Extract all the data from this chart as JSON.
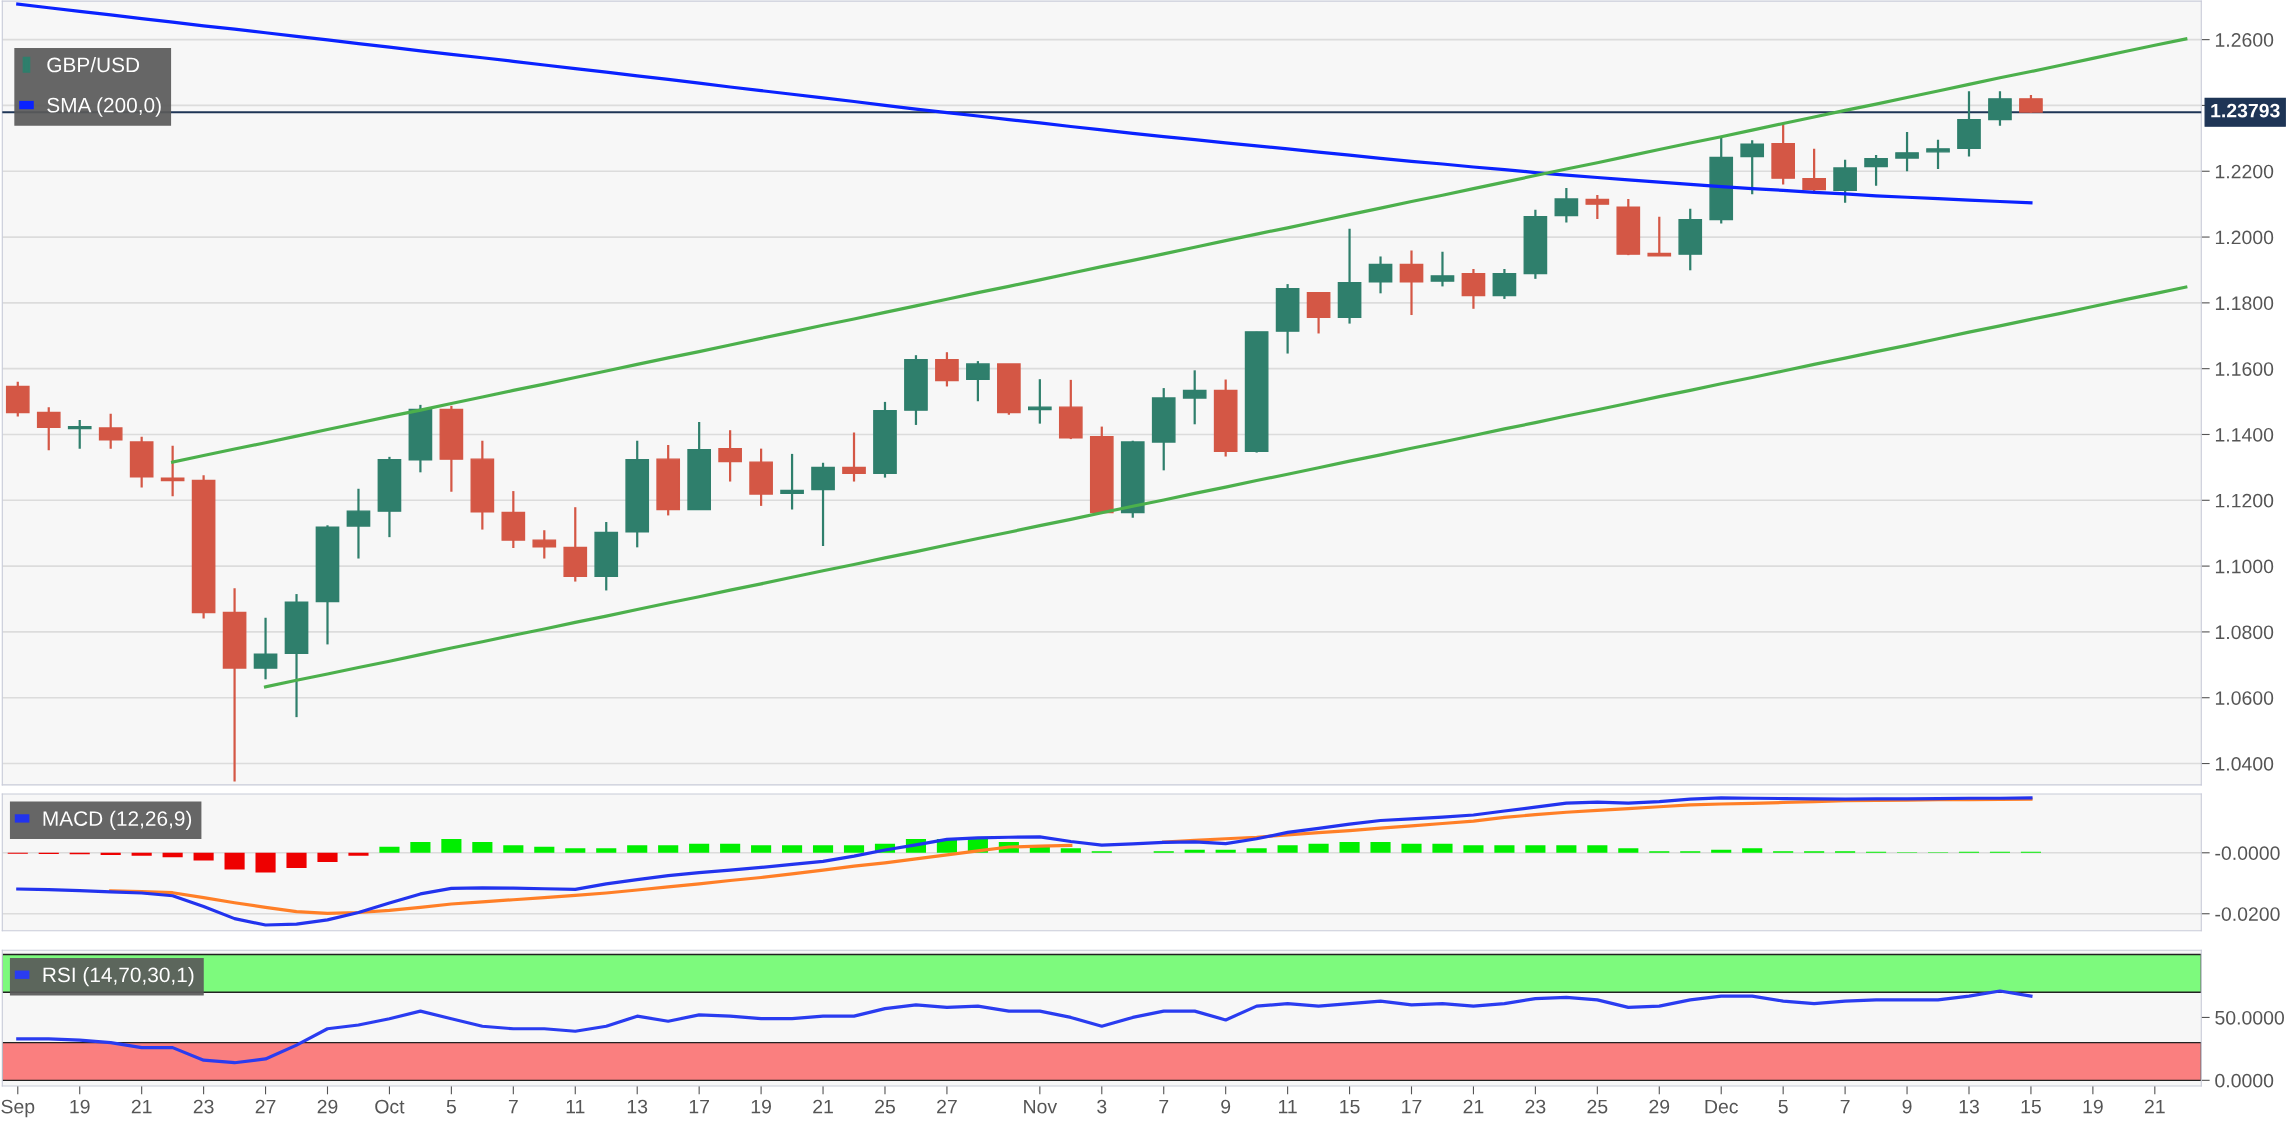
{
  "chart_data": [
    {
      "type": "candlestick",
      "ylim": [
        1.0335,
        1.2717
      ],
      "tick_labels": "y",
      "grid": "y",
      "legend": "top left",
      "categories": [
        null,
        null,
        null,
        null,
        null,
        null,
        null,
        null,
        null,
        null,
        null,
        null,
        null,
        null,
        null,
        null,
        null,
        null,
        null,
        null,
        null,
        null,
        null,
        null,
        null,
        null,
        null,
        null,
        null,
        null,
        null,
        null,
        null,
        null,
        null,
        null,
        null,
        null,
        null,
        null,
        null,
        null,
        null,
        null,
        null,
        null,
        null,
        null,
        null,
        null,
        null,
        null,
        null,
        null,
        null,
        null,
        null,
        null,
        null,
        null,
        null,
        null,
        null,
        null,
        null,
        null,
        null,
        null,
        null,
        null,
        null
      ],
      "yticks": [
        {
          "value": 1.04,
          "label": "1.0400"
        },
        {
          "value": 1.06,
          "label": "1.0600"
        },
        {
          "value": 1.08,
          "label": "1.0800"
        },
        {
          "value": 1.1,
          "label": "1.1000"
        },
        {
          "value": 1.12,
          "label": "1.1200"
        },
        {
          "value": 1.14,
          "label": "1.1400"
        },
        {
          "value": 1.16,
          "label": "1.1600"
        },
        {
          "value": 1.18,
          "label": "1.1800"
        },
        {
          "value": 1.2,
          "label": "1.2000"
        },
        {
          "value": 1.22,
          "label": "1.2200"
        },
        {
          "value": 1.24,
          "label": null
        },
        {
          "value": 1.26,
          "label": "1.2600"
        }
      ],
      "ref_lines": [
        {
          "axis": "y",
          "value": 1.23793,
          "label": "1.23793",
          "color": "#1e3556"
        }
      ],
      "series": [
        {
          "type": "line",
          "name": "SMA (200,0)",
          "color": "#0a22ff",
          "values": [
            1.2708,
            1.2697,
            1.2686,
            1.2675,
            1.2664,
            1.2653,
            1.2642,
            1.2632,
            1.2621,
            1.261,
            1.2599,
            1.2588,
            1.2577,
            1.2566,
            1.2555,
            1.2545,
            1.2534,
            1.2523,
            1.2512,
            1.2501,
            1.249,
            1.2479,
            1.2468,
            1.2456,
            1.2445,
            1.2434,
            1.2423,
            1.2412,
            1.24,
            1.2389,
            1.2378,
            1.2368,
            1.2357,
            1.2347,
            1.2336,
            1.2326,
            1.2315,
            1.2305,
            1.2296,
            1.2286,
            1.2277,
            1.2268,
            1.2258,
            1.2249,
            1.2239,
            1.223,
            1.2222,
            1.2213,
            1.2205,
            1.2196,
            1.2188,
            1.2181,
            1.2174,
            1.2167,
            1.216,
            1.2153,
            1.2147,
            1.2142,
            1.2136,
            1.2131,
            1.2125,
            1.2121,
            1.2117,
            1.2112,
            1.2108,
            1.2104,
            null,
            null,
            null,
            null,
            null
          ]
        },
        {
          "type": "line",
          "color": "#4cb04c",
          "values": [
            null,
            null,
            null,
            null,
            null,
            1.1316,
            1.1336,
            1.1356,
            1.1375,
            1.1395,
            1.1415,
            1.1435,
            1.1455,
            1.1474,
            1.1494,
            1.1514,
            1.1534,
            1.1553,
            1.1573,
            1.1593,
            1.1613,
            1.1633,
            1.1652,
            1.1672,
            1.1692,
            1.1712,
            1.1732,
            1.1751,
            1.1771,
            1.1791,
            1.1811,
            1.1831,
            1.185,
            1.187,
            1.189,
            1.191,
            1.1929,
            1.1949,
            1.1969,
            1.1989,
            1.2009,
            1.2028,
            1.2048,
            1.2068,
            1.2088,
            1.2108,
            1.2127,
            1.2147,
            1.2167,
            1.2187,
            1.2207,
            1.2226,
            1.2246,
            1.2266,
            1.2286,
            1.2305,
            1.2325,
            1.2345,
            1.2365,
            1.2385,
            1.2404,
            1.2424,
            1.2444,
            1.2464,
            1.2484,
            1.2503,
            1.2523,
            1.2543,
            1.2563,
            1.2583,
            1.2602
          ]
        },
        {
          "type": "line",
          "color": "#4cb04c",
          "values": [
            null,
            null,
            null,
            null,
            null,
            null,
            null,
            null,
            1.0633,
            1.0653,
            1.0672,
            1.0692,
            1.0711,
            1.0731,
            1.0751,
            1.077,
            1.079,
            1.0809,
            1.0829,
            1.0848,
            1.0868,
            1.0888,
            1.0907,
            1.0927,
            1.0946,
            1.0966,
            1.0986,
            1.1005,
            1.1025,
            1.1044,
            1.1064,
            1.1084,
            1.1103,
            1.1123,
            1.1142,
            1.1162,
            1.1182,
            1.1201,
            1.1221,
            1.124,
            1.126,
            1.1279,
            1.1299,
            1.1319,
            1.1338,
            1.1358,
            1.1377,
            1.1397,
            1.1417,
            1.1436,
            1.1456,
            1.1475,
            1.1495,
            1.1515,
            1.1534,
            1.1554,
            1.1573,
            1.1593,
            1.1613,
            1.1632,
            1.1652,
            1.1671,
            1.1691,
            1.1711,
            1.173,
            1.175,
            1.1769,
            1.1789,
            1.1809,
            1.1828,
            1.1848
          ]
        },
        {
          "name": "GBP/USD",
          "color": "#2f7f6c",
          "ohlc": [
            [
              1.1546,
              1.156,
              1.1455,
              1.1467
            ],
            [
              1.1467,
              1.1483,
              1.1352,
              1.1422
            ],
            [
              1.1418,
              1.1444,
              1.1357,
              1.1424
            ],
            [
              1.142,
              1.1463,
              1.1357,
              1.1384
            ],
            [
              1.1377,
              1.1393,
              1.1239,
              1.1271
            ],
            [
              1.1267,
              1.1366,
              1.1212,
              1.126
            ],
            [
              1.126,
              1.1276,
              1.0841,
              1.0859
            ],
            [
              1.0859,
              1.0933,
              1.0345,
              1.069
            ],
            [
              1.069,
              1.0843,
              1.0656,
              1.0732
            ],
            [
              1.0735,
              1.0915,
              1.0541,
              1.089
            ],
            [
              1.0892,
              1.1124,
              1.0762,
              1.1118
            ],
            [
              1.1122,
              1.1235,
              1.1023,
              1.1167
            ],
            [
              1.1167,
              1.1332,
              1.1088,
              1.1323
            ],
            [
              1.1323,
              1.149,
              1.1285,
              1.1476
            ],
            [
              1.1476,
              1.1487,
              1.1226,
              1.1325
            ],
            [
              1.1325,
              1.1381,
              1.1111,
              1.1165
            ],
            [
              1.1163,
              1.1228,
              1.1055,
              1.1079
            ],
            [
              1.1079,
              1.1109,
              1.1023,
              1.1059
            ],
            [
              1.1057,
              1.1179,
              1.0953,
              1.0969
            ],
            [
              1.0969,
              1.1134,
              1.0926,
              1.1102
            ],
            [
              1.1104,
              1.1381,
              1.1057,
              1.1323
            ],
            [
              1.1325,
              1.1368,
              1.1154,
              1.1172
            ],
            [
              1.1172,
              1.1438,
              1.1172,
              1.1354
            ],
            [
              1.1357,
              1.1413,
              1.1257,
              1.1318
            ],
            [
              1.1316,
              1.1357,
              1.1183,
              1.1219
            ],
            [
              1.1221,
              1.1341,
              1.1172,
              1.123
            ],
            [
              1.1233,
              1.1314,
              1.1061,
              1.13
            ],
            [
              1.13,
              1.1406,
              1.1257,
              1.1282
            ],
            [
              1.1282,
              1.1499,
              1.1269,
              1.1472
            ],
            [
              1.1474,
              1.1641,
              1.1429,
              1.1627
            ],
            [
              1.1627,
              1.165,
              1.1546,
              1.1564
            ],
            [
              1.1568,
              1.1623,
              1.1501,
              1.1614
            ],
            [
              1.1614,
              1.1614,
              1.146,
              1.1467
            ],
            [
              1.1476,
              1.1568,
              1.1433,
              1.1483
            ],
            [
              1.1483,
              1.1566,
              1.1386,
              1.139
            ],
            [
              1.1393,
              1.1424,
              1.1163,
              1.1163
            ],
            [
              1.1163,
              1.1381,
              1.1147,
              1.1377
            ],
            [
              1.1377,
              1.1541,
              1.1291,
              1.1511
            ],
            [
              1.1511,
              1.1595,
              1.1431,
              1.1534
            ],
            [
              1.1534,
              1.1567,
              1.1333,
              1.1349
            ],
            [
              1.1349,
              1.1712,
              1.1345,
              1.1712
            ],
            [
              1.1714,
              1.1857,
              1.1646,
              1.1843
            ],
            [
              1.1831,
              1.1831,
              1.1707,
              1.1756
            ],
            [
              1.1756,
              1.2025,
              1.1737,
              1.1861
            ],
            [
              1.1864,
              1.1941,
              1.1829,
              1.1917
            ],
            [
              1.1917,
              1.1959,
              1.1763,
              1.1864
            ],
            [
              1.1866,
              1.1955,
              1.185,
              1.1882
            ],
            [
              1.1889,
              1.1903,
              1.1782,
              1.1822
            ],
            [
              1.1822,
              1.1903,
              1.1812,
              1.1889
            ],
            [
              1.1889,
              1.2083,
              1.1873,
              1.2062
            ],
            [
              1.2065,
              1.2149,
              1.2044,
              1.2116
            ],
            [
              1.2114,
              1.2128,
              1.2055,
              1.21
            ],
            [
              1.2091,
              1.2116,
              1.1945,
              1.1948
            ],
            [
              1.195,
              1.2062,
              1.1943,
              1.1943
            ],
            [
              1.1948,
              1.2086,
              1.1899,
              1.2053
            ],
            [
              1.2053,
              1.2301,
              1.2041,
              1.2242
            ],
            [
              1.2245,
              1.2294,
              1.213,
              1.2282
            ],
            [
              1.2284,
              1.2343,
              1.216,
              1.2179
            ],
            [
              1.2177,
              1.2268,
              1.2139,
              1.2144
            ],
            [
              1.2142,
              1.2235,
              1.2104,
              1.221
            ],
            [
              1.2214,
              1.2249,
              1.2156,
              1.2238
            ],
            [
              1.224,
              1.2319,
              1.22,
              1.2256
            ],
            [
              1.2259,
              1.2296,
              1.2207,
              1.2268
            ],
            [
              1.227,
              1.2443,
              1.2245,
              1.2357
            ],
            [
              1.2357,
              1.2443,
              1.2338,
              1.242
            ],
            [
              1.242,
              1.2432,
              1.2378,
              1.238
            ],
            null,
            null,
            null,
            null,
            null
          ],
          "colors": [
            "#d45745",
            "#d45745",
            "#2f7f6c",
            "#d45745",
            "#d45745",
            "#d45745",
            "#d45745",
            "#d45745",
            "#2f7f6c",
            "#2f7f6c",
            "#2f7f6c",
            "#2f7f6c",
            "#2f7f6c",
            "#2f7f6c",
            "#d45745",
            "#d45745",
            "#d45745",
            "#d45745",
            "#d45745",
            "#2f7f6c",
            "#2f7f6c",
            "#d45745",
            "#2f7f6c",
            "#d45745",
            "#d45745",
            "#2f7f6c",
            "#2f7f6c",
            "#d45745",
            "#2f7f6c",
            "#2f7f6c",
            "#d45745",
            "#2f7f6c",
            "#d45745",
            "#2f7f6c",
            "#d45745",
            "#d45745",
            "#2f7f6c",
            "#2f7f6c",
            "#2f7f6c",
            "#d45745",
            "#2f7f6c",
            "#2f7f6c",
            "#d45745",
            "#2f7f6c",
            "#2f7f6c",
            "#d45745",
            "#2f7f6c",
            "#d45745",
            "#2f7f6c",
            "#2f7f6c",
            "#2f7f6c",
            "#d45745",
            "#d45745",
            "#d45745",
            "#2f7f6c",
            "#2f7f6c",
            "#2f7f6c",
            "#d45745",
            "#d45745",
            "#2f7f6c",
            "#2f7f6c",
            "#2f7f6c",
            "#2f7f6c",
            "#2f7f6c",
            "#2f7f6c",
            "#d45745",
            null,
            null,
            null,
            null,
            null
          ]
        }
      ]
    },
    {
      "type": "bar",
      "ylim": [
        -0.0256,
        0.0193
      ],
      "tick_labels": "y",
      "grid": "y",
      "legend": "top left",
      "categories": [
        null,
        null,
        null,
        null,
        null,
        null,
        null,
        null,
        null,
        null,
        null,
        null,
        null,
        null,
        null,
        null,
        null,
        null,
        null,
        null,
        null,
        null,
        null,
        null,
        null,
        null,
        null,
        null,
        null,
        null,
        null,
        null,
        null,
        null,
        null,
        null,
        null,
        null,
        null,
        null,
        null,
        null,
        null,
        null,
        null,
        null,
        null,
        null,
        null,
        null,
        null,
        null,
        null,
        null,
        null,
        null,
        null,
        null,
        null,
        null,
        null,
        null,
        null,
        null,
        null,
        null,
        null,
        null,
        null,
        null,
        null
      ],
      "yticks": [
        {
          "value": -0.02,
          "label": "-0.0200"
        },
        {
          "value": 0,
          "label": "-0.0000"
        }
      ],
      "series": [
        {
          "values": [
            -0.0003,
            -0.0004,
            -0.0005,
            -0.0007,
            -0.001,
            -0.0015,
            -0.0025,
            -0.0055,
            -0.0065,
            -0.005,
            -0.003,
            -0.001,
            0.002,
            0.0035,
            0.0045,
            0.0035,
            0.0025,
            0.002,
            0.0015,
            0.0015,
            0.0025,
            0.0025,
            0.003,
            0.003,
            0.0025,
            0.0025,
            0.0025,
            0.0025,
            0.003,
            0.0045,
            0.0045,
            0.0045,
            0.0035,
            0.0025,
            0.0015,
            0.0005,
            null,
            0.0005,
            0.001,
            0.001,
            0.0015,
            0.0025,
            0.003,
            0.0035,
            0.0035,
            0.003,
            0.003,
            0.0025,
            0.0025,
            0.0025,
            0.0025,
            0.0025,
            0.0015,
            0.0005,
            0.0005,
            0.001,
            0.0015,
            0.0005,
            0.0005,
            0.0005,
            0.0003,
            0.0002,
            0.0002,
            0.0003,
            0.0003,
            0.0003,
            null,
            null,
            null,
            null,
            null
          ],
          "colors": [
            "#ee0000",
            "#ee0000",
            "#ee0000",
            "#ee0000",
            "#ee0000",
            "#ee0000",
            "#ee0000",
            "#ee0000",
            "#ee0000",
            "#ee0000",
            "#ee0000",
            "#ee0000",
            "#00ee00",
            "#00ee00",
            "#00ee00",
            "#00ee00",
            "#00ee00",
            "#00ee00",
            "#00ee00",
            "#00ee00",
            "#00ee00",
            "#00ee00",
            "#00ee00",
            "#00ee00",
            "#00ee00",
            "#00ee00",
            "#00ee00",
            "#00ee00",
            "#00ee00",
            "#00ee00",
            "#00ee00",
            "#00ee00",
            "#00ee00",
            "#00ee00",
            "#00ee00",
            "#00ee00",
            "#00ee00",
            "#00ee00",
            "#00ee00",
            "#00ee00",
            "#00ee00",
            "#00ee00",
            "#00ee00",
            "#00ee00",
            "#00ee00",
            "#00ee00",
            "#00ee00",
            "#00ee00",
            "#00ee00",
            "#00ee00",
            "#00ee00",
            "#00ee00",
            "#00ee00",
            "#00ee00",
            "#00ee00",
            "#00ee00",
            "#00ee00",
            "#00ee00",
            "#00ee00",
            "#00ee00",
            "#00ee00",
            "#00ee00",
            "#00ee00",
            "#00ee00",
            "#00ee00",
            "#00ee00",
            null,
            null,
            null,
            null,
            null
          ]
        },
        {
          "type": "line",
          "color": "#ff7f27",
          "values": [
            null,
            null,
            null,
            -0.0125,
            -0.0127,
            -0.0131,
            -0.0147,
            -0.0164,
            -0.0179,
            -0.0193,
            -0.0199,
            -0.0196,
            -0.0189,
            -0.0179,
            -0.0168,
            -0.0161,
            -0.0154,
            -0.0147,
            -0.014,
            -0.0132,
            -0.0122,
            -0.0112,
            -0.0102,
            -0.0091,
            -0.0081,
            -0.0069,
            -0.0057,
            -0.0044,
            -0.0033,
            -0.002,
            -0.0007,
            0.0006,
            0.0019,
            0.0022,
            0.0024,
            null,
            null,
            0.0035,
            0.0041,
            0.0046,
            0.0051,
            0.0059,
            0.0066,
            0.0073,
            0.0081,
            0.0088,
            0.0096,
            0.0104,
            0.0116,
            0.0125,
            0.0133,
            0.0139,
            0.0145,
            0.0151,
            0.0157,
            0.016,
            0.0162,
            0.0165,
            0.0168,
            0.0171,
            0.0172,
            0.0173,
            0.0174,
            0.0174,
            0.0175,
            0.0176,
            null,
            null,
            null,
            null,
            null
          ]
        },
        {
          "type": "line",
          "name": "MACD (12,26,9)",
          "color": "#2233ee",
          "values": [
            -0.0119,
            -0.0121,
            -0.0124,
            -0.0128,
            -0.0132,
            -0.0141,
            -0.0176,
            -0.0216,
            -0.0237,
            -0.0234,
            -0.022,
            -0.0196,
            -0.0165,
            -0.0135,
            -0.0117,
            -0.0115,
            -0.0116,
            -0.0118,
            -0.012,
            -0.0102,
            -0.0088,
            -0.0075,
            -0.0065,
            -0.0057,
            -0.0048,
            -0.0038,
            -0.0028,
            -0.0011,
            0.0009,
            0.0026,
            0.0044,
            0.0049,
            0.0051,
            0.0052,
            0.0037,
            0.0025,
            0.0029,
            0.0034,
            0.0036,
            0.003,
            0.0046,
            0.0067,
            0.008,
            0.0094,
            0.0106,
            0.0111,
            0.0117,
            0.0124,
            0.0137,
            0.015,
            0.0163,
            0.0166,
            0.0163,
            0.0168,
            0.0176,
            0.018,
            0.0179,
            0.0178,
            0.0177,
            0.0176,
            0.0177,
            0.0177,
            0.0178,
            0.0179,
            0.0179,
            0.018,
            null,
            null,
            null,
            null,
            null
          ]
        }
      ]
    },
    {
      "type": "line",
      "ylim": [
        -4.5,
        103.4
      ],
      "legend": "top left",
      "categories": [
        "Sep",
        null,
        "19",
        null,
        "21",
        null,
        "23",
        null,
        "27",
        null,
        "29",
        null,
        "Oct",
        null,
        "5",
        null,
        "7",
        null,
        "11",
        null,
        "13",
        null,
        "17",
        null,
        "19",
        null,
        "21",
        null,
        "25",
        null,
        "27",
        null,
        null,
        "Nov",
        null,
        "3",
        null,
        "7",
        null,
        "9",
        null,
        "11",
        null,
        "15",
        null,
        "17",
        null,
        "21",
        null,
        "23",
        null,
        "25",
        null,
        "29",
        null,
        "Dec",
        null,
        "5",
        null,
        "7",
        null,
        "9",
        null,
        "13",
        null,
        "15",
        null,
        "19",
        null,
        "21",
        null
      ],
      "yticks": [
        {
          "value": 0,
          "label": "0.0000"
        },
        {
          "value": 50,
          "label": "50.0000"
        }
      ],
      "bands": [
        {
          "axis": "y",
          "from": 70,
          "to": 100,
          "color": "#7dfa7d"
        },
        {
          "axis": "y",
          "from": 0,
          "to": 30,
          "color": "#fa7f7f"
        }
      ],
      "series": [
        {
          "name": "RSI (14,70,30,1)",
          "color": "#2a3cf0",
          "values": [
            33,
            33,
            32,
            30,
            26,
            26,
            16,
            14,
            17,
            28,
            41,
            44,
            49,
            55,
            49,
            43,
            41,
            41,
            39,
            43,
            51,
            47,
            52,
            51,
            49,
            49,
            51,
            51,
            57,
            60,
            58,
            59,
            55,
            55,
            50,
            43,
            50,
            55,
            55,
            48,
            59,
            61,
            59,
            61,
            63,
            60,
            61,
            59,
            61,
            65,
            66,
            64,
            58,
            59,
            64,
            67,
            67,
            63,
            61,
            63,
            64,
            64,
            64,
            67,
            71,
            67,
            null,
            null,
            null,
            null,
            null
          ]
        }
      ]
    }
  ]
}
